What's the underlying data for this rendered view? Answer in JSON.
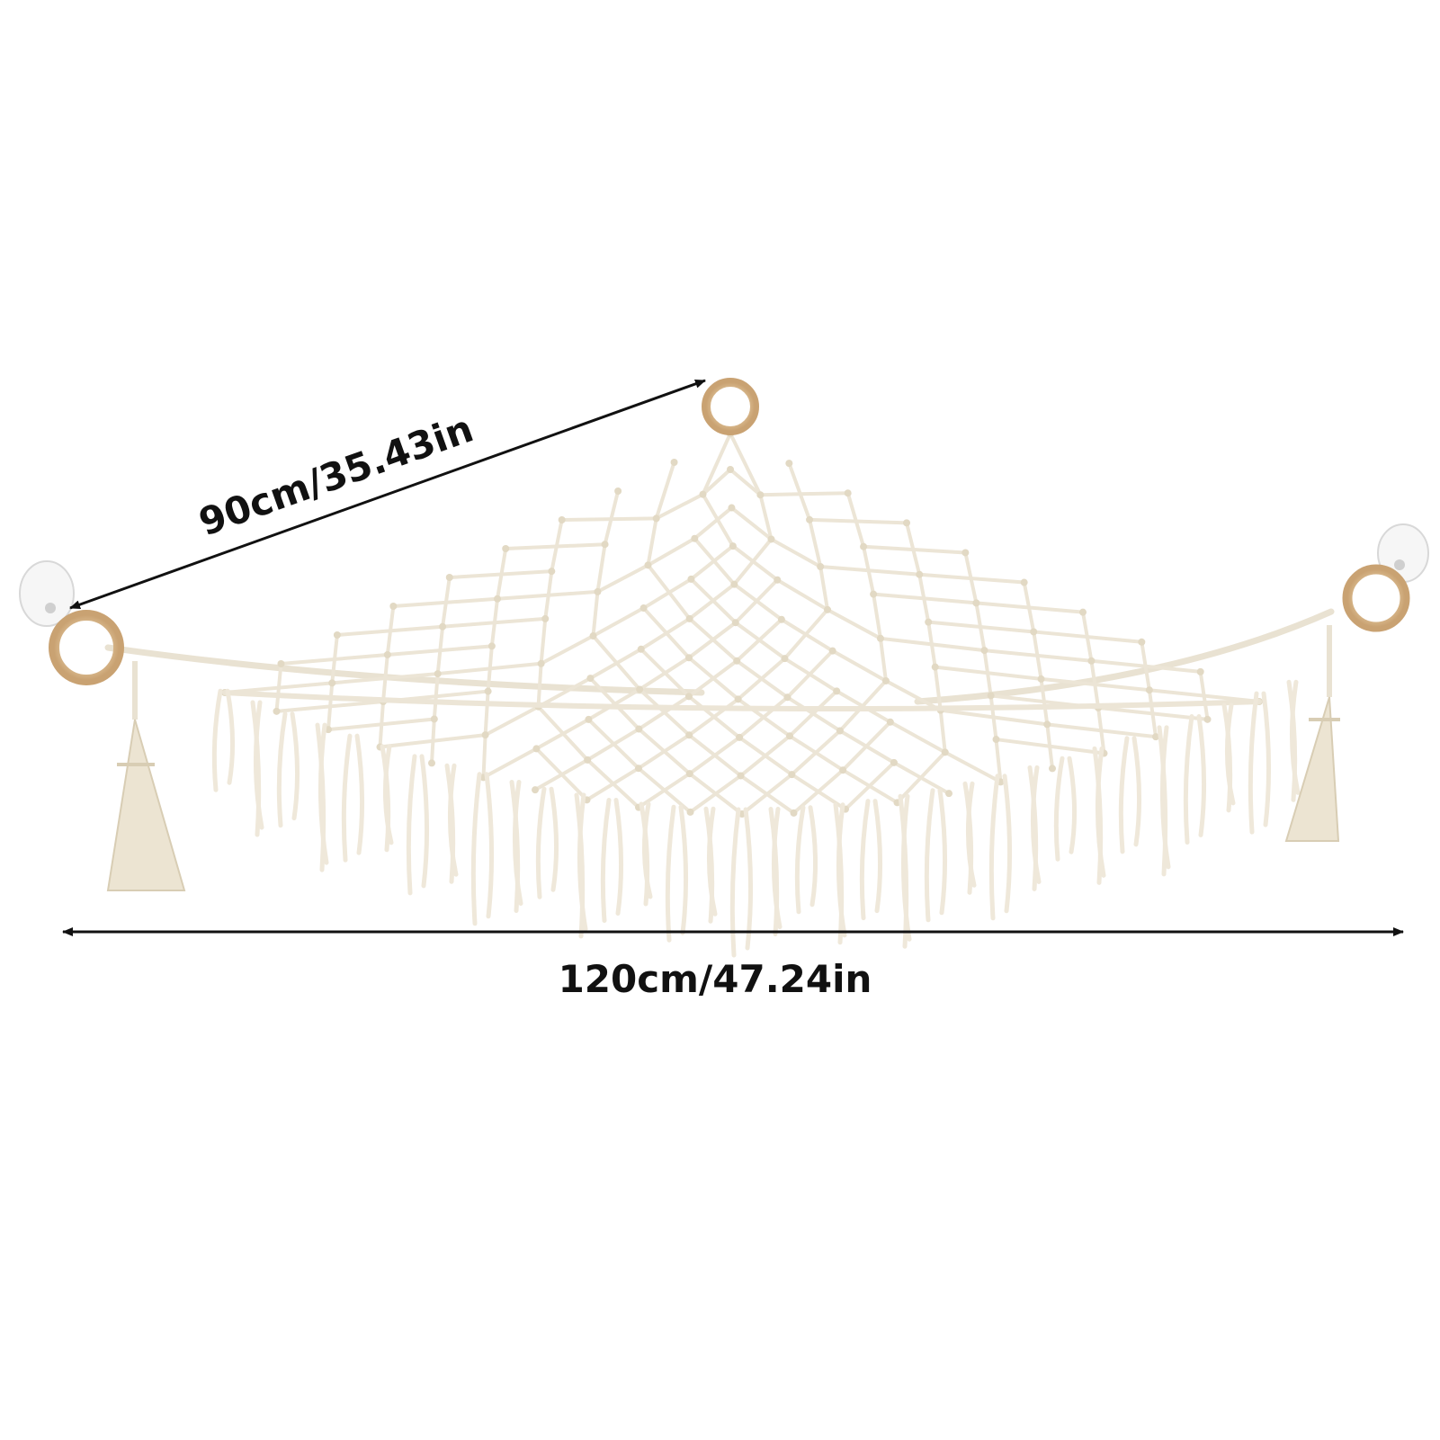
{
  "dimensions": {
    "diagonal_label": "90cm/35.43in",
    "width_label": "120cm/47.24in"
  },
  "product": {
    "cord_color": "#efe9dc",
    "ring_color": "#d9b88c",
    "hook_color": "#f4f4f4",
    "arrow_color": "#111111"
  }
}
